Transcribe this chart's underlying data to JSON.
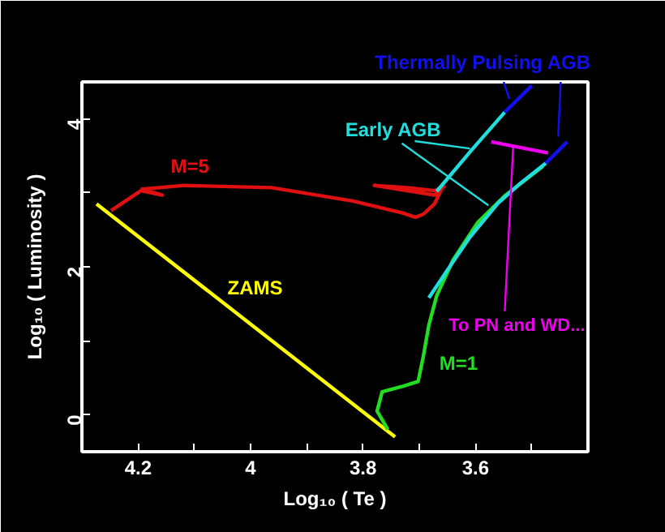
{
  "chart_data": {
    "type": "line",
    "xlabel": "Log₁₀ ( Te )",
    "ylabel": "Log₁₀ ( Luminosity )",
    "xlim": [
      4.3,
      3.4
    ],
    "ylim": [
      -0.5,
      4.5
    ],
    "xticks": [
      4.2,
      {
        "value": 4.1,
        "label": null
      },
      4,
      {
        "value": 3.9,
        "label": null
      },
      3.8,
      {
        "value": 3.7,
        "label": null
      },
      3.6,
      {
        "value": 3.5,
        "label": null
      }
    ],
    "yticks": [
      0,
      {
        "value": 1,
        "label": null
      },
      2,
      {
        "value": 3,
        "label": null
      },
      4
    ],
    "grid": false,
    "marker": "none",
    "line_style": "solid",
    "series": [
      {
        "color": "#ffff00",
        "x": [
          4.274,
          3.743
        ],
        "values": [
          2.85,
          -0.3
        ]
      },
      {
        "color": "#e01010",
        "x": [
          4.248,
          4.195,
          4.157,
          4.193,
          4.118,
          3.963,
          3.818,
          3.731,
          3.707,
          3.693,
          3.673,
          3.659,
          3.673,
          3.722,
          3.78,
          3.722,
          3.673,
          3.654
        ],
        "values": [
          2.76,
          3.03,
          2.97,
          3.05,
          3.1,
          3.07,
          2.89,
          2.73,
          2.67,
          2.71,
          2.85,
          3.07,
          3.03,
          3.07,
          3.1,
          3.03,
          2.97,
          3.1
        ]
      },
      {
        "color": "#22dddd",
        "x": [
          3.669,
          3.608,
          3.548
        ],
        "values": [
          3.02,
          3.57,
          4.09
        ]
      },
      {
        "color": "#1010ee",
        "x": [
          3.548,
          3.5
        ],
        "values": [
          4.09,
          4.45
        ]
      },
      {
        "color": "#22dd22",
        "x": [
          3.756,
          3.775,
          3.766,
          3.731,
          3.702,
          3.693,
          3.683,
          3.669,
          3.64,
          3.596,
          3.548,
          3.48
        ],
        "values": [
          -0.2,
          0.05,
          0.31,
          0.38,
          0.45,
          0.78,
          1.21,
          1.61,
          2.09,
          2.6,
          2.96,
          3.36
        ]
      },
      {
        "color": "#22dddd",
        "x": [
          3.683,
          3.655,
          3.61,
          3.56,
          3.52,
          3.475
        ],
        "values": [
          1.58,
          1.9,
          2.4,
          2.86,
          3.13,
          3.4
        ]
      },
      {
        "color": "#1010ee",
        "x": [
          3.475,
          3.437
        ],
        "values": [
          3.4,
          3.69
        ]
      },
      {
        "color": "#ee00ee",
        "x": [
          3.471,
          3.572
        ],
        "values": [
          3.54,
          3.69
        ]
      }
    ],
    "annotations": [
      "M=5",
      "ZAMS",
      "M=1",
      {
        "text": "Early AGB",
        "x": 3.61,
        "y": 3.6
      },
      "Thermally Pulsing AGB",
      {
        "text": "To PN and WD...",
        "x": 3.533,
        "y": 3.62
      }
    ]
  }
}
